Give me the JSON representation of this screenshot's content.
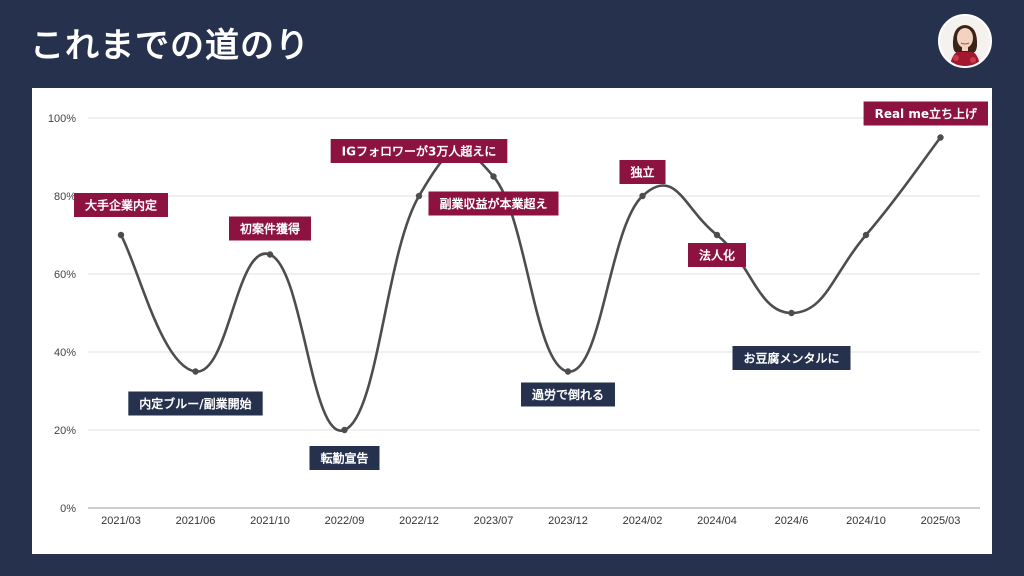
{
  "header": {
    "title": "これまでの道のり"
  },
  "colors": {
    "background": "#26324d",
    "line": "#4d4d4d",
    "label_up": "#8c1240",
    "label_down": "#26324d"
  },
  "chart_data": {
    "type": "line",
    "title": "",
    "xlabel": "",
    "ylabel": "",
    "categories": [
      "2021/03",
      "2021/06",
      "2021/10",
      "2022/09",
      "2022/12",
      "2023/07",
      "2023/12",
      "2024/02",
      "2024/04",
      "2024/6",
      "2024/10",
      "2025/03"
    ],
    "values": [
      70,
      35,
      65,
      20,
      80,
      85,
      35,
      80,
      70,
      50,
      70,
      95
    ],
    "ylim": [
      0,
      100
    ],
    "yticks": [
      "0%",
      "20%",
      "40%",
      "60%",
      "80%",
      "100%"
    ],
    "grid": true,
    "smooth": true,
    "annotations": [
      {
        "index": 0,
        "text": "大手企業内定",
        "kind": "up"
      },
      {
        "index": 1,
        "text": "内定ブルー/副業開始",
        "kind": "down"
      },
      {
        "index": 2,
        "text": "初案件獲得",
        "kind": "up"
      },
      {
        "index": 3,
        "text": "転勤宣告",
        "kind": "down"
      },
      {
        "index": 4,
        "text": "IGフォロワーが3万人超えに",
        "kind": "up"
      },
      {
        "index": 5,
        "text": "副業収益が本業超え",
        "kind": "up"
      },
      {
        "index": 6,
        "text": "過労で倒れる",
        "kind": "down"
      },
      {
        "index": 7,
        "text": "独立",
        "kind": "up"
      },
      {
        "index": 8,
        "text": "法人化",
        "kind": "up"
      },
      {
        "index": 9,
        "text": "お豆腐メンタルに",
        "kind": "down"
      },
      {
        "index": 11,
        "text": "Real me立ち上げ",
        "kind": "up"
      }
    ]
  }
}
